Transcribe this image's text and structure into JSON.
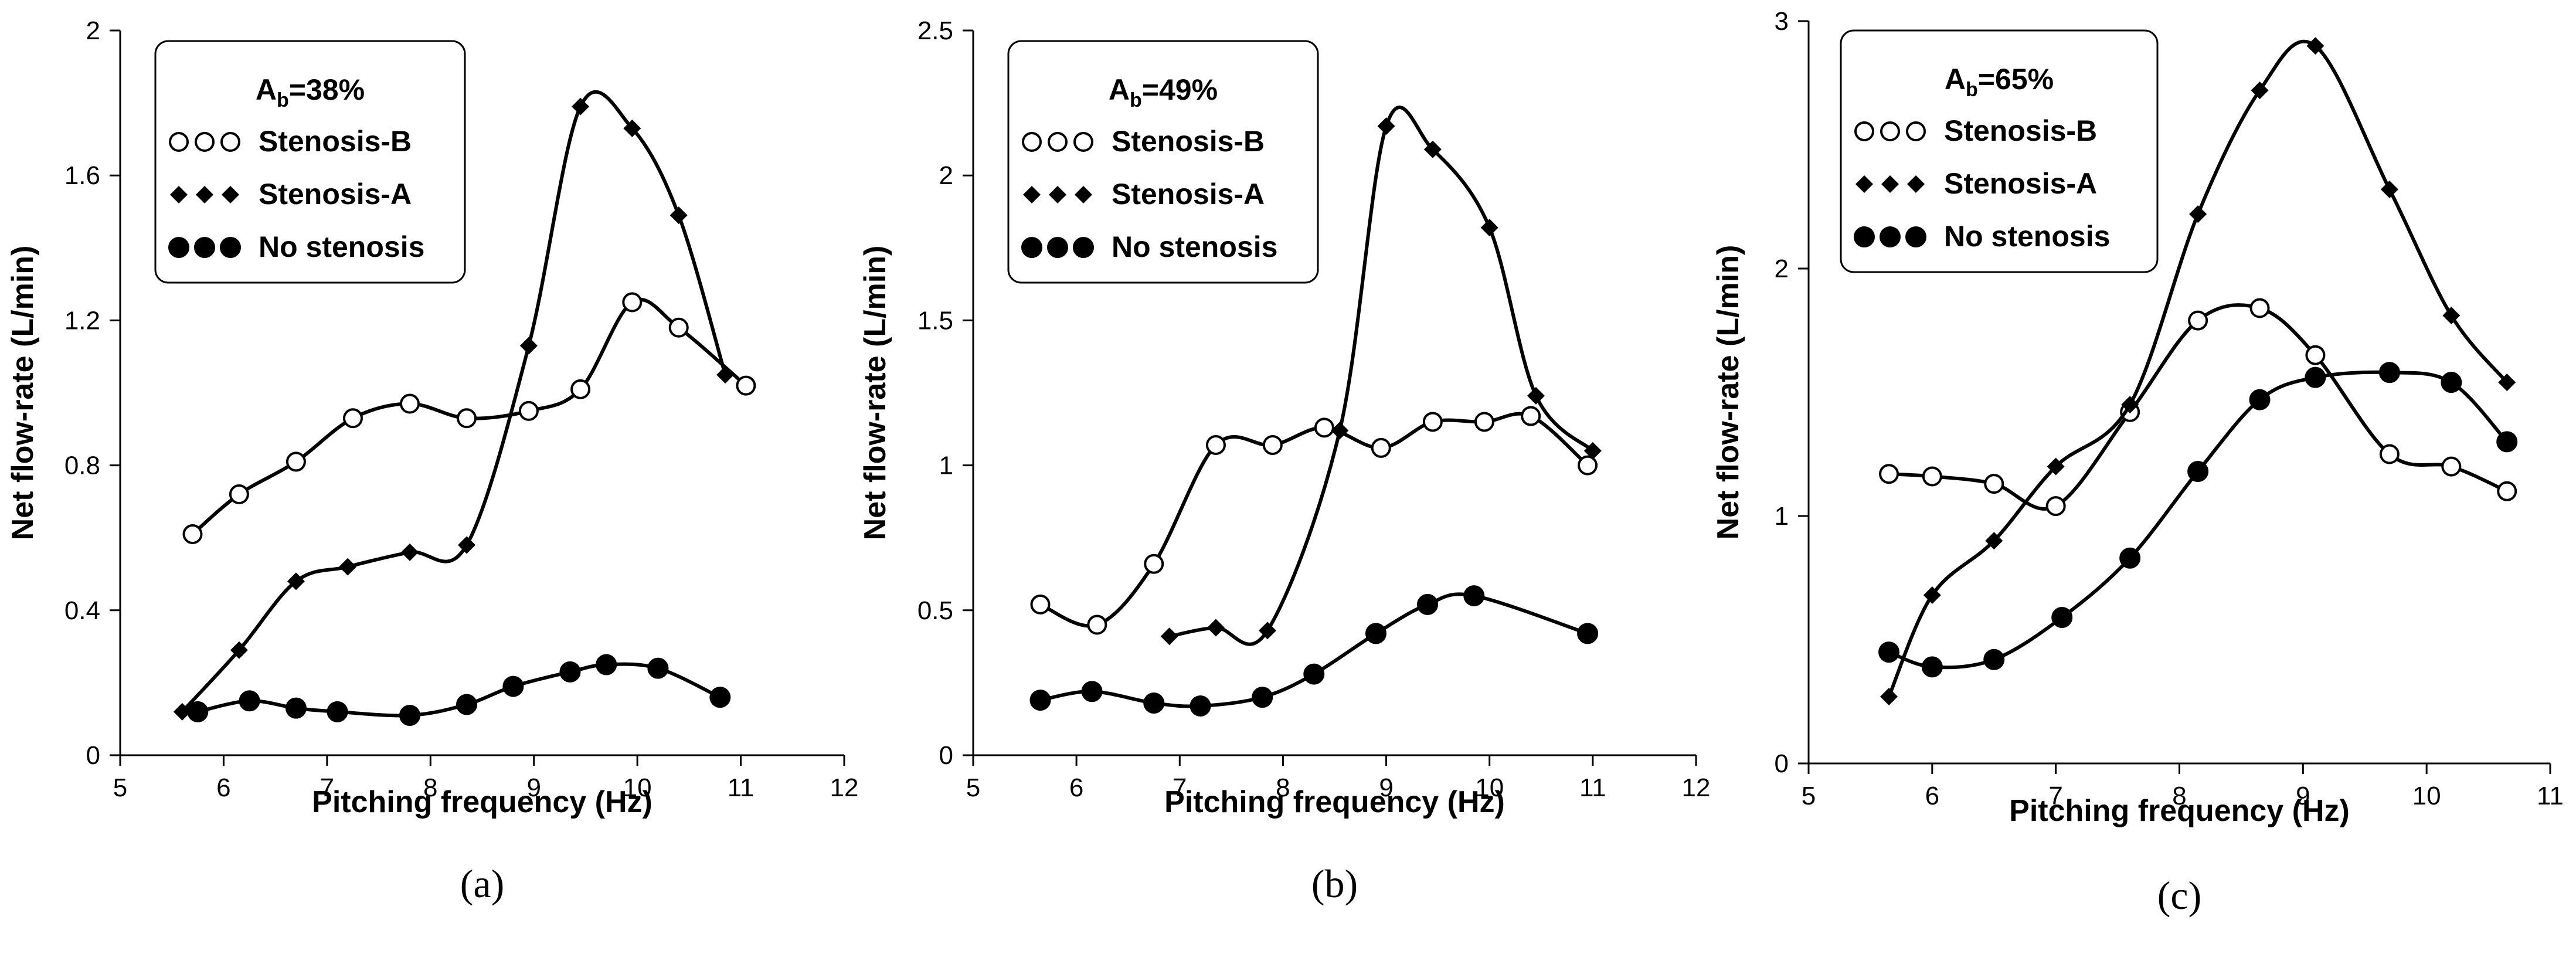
{
  "chart_data": [
    {
      "type": "line",
      "panel_label": "(a)",
      "legend_title": {
        "main": "A",
        "sub": "b",
        "suffix": "=38%"
      },
      "legend_position": "top-left",
      "xlabel": "Pitching frequency (Hz)",
      "ylabel": "Net flow-rate (L/min)",
      "xlim": [
        5,
        12
      ],
      "ylim": [
        0,
        2
      ],
      "xticks": [
        "5",
        "6",
        "7",
        "8",
        "9",
        "10",
        "11",
        "12"
      ],
      "yticks": [
        "0",
        "0.4",
        "0.8",
        "1.2",
        "1.6",
        "2"
      ],
      "grid": false,
      "series": [
        {
          "name": "Stenosis-B",
          "marker": "open-circle",
          "legend_symbol": "○○○",
          "x": [
            5.7,
            6.15,
            6.7,
            7.25,
            7.8,
            8.35,
            8.95,
            9.45,
            9.95,
            10.4,
            11.05
          ],
          "y": [
            0.61,
            0.72,
            0.81,
            0.93,
            0.97,
            0.93,
            0.95,
            1.01,
            1.25,
            1.18,
            1.02
          ]
        },
        {
          "name": "Stenosis-A",
          "marker": "filled-diamond",
          "legend_symbol": "◆◆◆",
          "x": [
            5.6,
            6.15,
            6.7,
            7.2,
            7.8,
            8.35,
            8.95,
            9.45,
            9.95,
            10.4,
            10.85
          ],
          "y": [
            0.12,
            0.29,
            0.48,
            0.52,
            0.56,
            0.58,
            1.13,
            1.79,
            1.73,
            1.49,
            1.05
          ]
        },
        {
          "name": "No stenosis",
          "marker": "filled-circle",
          "legend_symbol": "●●●",
          "x": [
            5.75,
            6.25,
            6.7,
            7.1,
            7.8,
            8.35,
            8.8,
            9.35,
            9.7,
            10.2,
            10.8
          ],
          "y": [
            0.12,
            0.15,
            0.13,
            0.12,
            0.11,
            0.14,
            0.19,
            0.23,
            0.25,
            0.24,
            0.16
          ]
        }
      ]
    },
    {
      "type": "line",
      "panel_label": "(b)",
      "legend_title": {
        "main": "A",
        "sub": "b",
        "suffix": "=49%"
      },
      "legend_position": "top-left",
      "xlabel": "Pitching frequency (Hz)",
      "ylabel": "Net flow-rate (L/min)",
      "xlim": [
        5,
        12
      ],
      "ylim": [
        0,
        2.5
      ],
      "xticks": [
        "5",
        "6",
        "7",
        "8",
        "9",
        "10",
        "11",
        "12"
      ],
      "yticks": [
        "0",
        "0.5",
        "1",
        "1.5",
        "2",
        "2.5"
      ],
      "grid": false,
      "series": [
        {
          "name": "Stenosis-B",
          "marker": "open-circle",
          "legend_symbol": "○○○",
          "x": [
            5.65,
            6.2,
            6.75,
            7.35,
            7.9,
            8.4,
            8.95,
            9.45,
            9.95,
            10.4,
            10.95
          ],
          "y": [
            0.52,
            0.45,
            0.66,
            1.07,
            1.07,
            1.13,
            1.06,
            1.15,
            1.15,
            1.17,
            1.0
          ]
        },
        {
          "name": "Stenosis-A",
          "marker": "filled-diamond",
          "legend_symbol": "◆◆◆",
          "x": [
            6.9,
            7.35,
            7.85,
            8.55,
            9.0,
            9.45,
            10.0,
            10.45,
            11.0
          ],
          "y": [
            0.41,
            0.44,
            0.43,
            1.12,
            2.17,
            2.09,
            1.82,
            1.24,
            1.05
          ]
        },
        {
          "name": "No stenosis",
          "marker": "filled-circle",
          "legend_symbol": "●●●",
          "x": [
            5.65,
            6.15,
            6.75,
            7.2,
            7.8,
            8.3,
            8.9,
            9.4,
            9.85,
            10.95
          ],
          "y": [
            0.19,
            0.22,
            0.18,
            0.17,
            0.2,
            0.28,
            0.42,
            0.52,
            0.55,
            0.42
          ]
        }
      ]
    },
    {
      "type": "line",
      "panel_label": "(c)",
      "legend_title": {
        "main": "A",
        "sub": "b",
        "suffix": "=65%"
      },
      "legend_position": "top-left",
      "xlabel": "Pitching frequency (Hz)",
      "ylabel": "Net flow-rate (L/min)",
      "xlim": [
        5,
        11
      ],
      "ylim": [
        0,
        3
      ],
      "xticks": [
        "5",
        "6",
        "7",
        "8",
        "9",
        "10",
        "11"
      ],
      "yticks": [
        "0",
        "1",
        "2",
        "3"
      ],
      "grid": false,
      "series": [
        {
          "name": "Stenosis-B",
          "marker": "open-circle",
          "legend_symbol": "○○○",
          "x": [
            5.65,
            6.0,
            6.5,
            7.0,
            7.6,
            8.15,
            8.65,
            9.1,
            9.7,
            10.2,
            10.65
          ],
          "y": [
            1.17,
            1.16,
            1.13,
            1.04,
            1.42,
            1.79,
            1.84,
            1.65,
            1.25,
            1.2,
            1.1
          ]
        },
        {
          "name": "Stenosis-A",
          "marker": "filled-diamond",
          "legend_symbol": "◆◆◆",
          "x": [
            5.65,
            6.0,
            6.5,
            7.0,
            7.6,
            8.15,
            8.65,
            9.1,
            9.7,
            10.2,
            10.65
          ],
          "y": [
            0.27,
            0.68,
            0.9,
            1.2,
            1.45,
            2.22,
            2.72,
            2.9,
            2.32,
            1.81,
            1.54
          ]
        },
        {
          "name": "No stenosis",
          "marker": "filled-circle",
          "legend_symbol": "●●●",
          "x": [
            5.65,
            6.0,
            6.5,
            7.05,
            7.6,
            8.15,
            8.65,
            9.1,
            9.7,
            10.2,
            10.65
          ],
          "y": [
            0.45,
            0.39,
            0.42,
            0.59,
            0.83,
            1.18,
            1.47,
            1.56,
            1.58,
            1.54,
            1.3
          ]
        }
      ]
    }
  ]
}
